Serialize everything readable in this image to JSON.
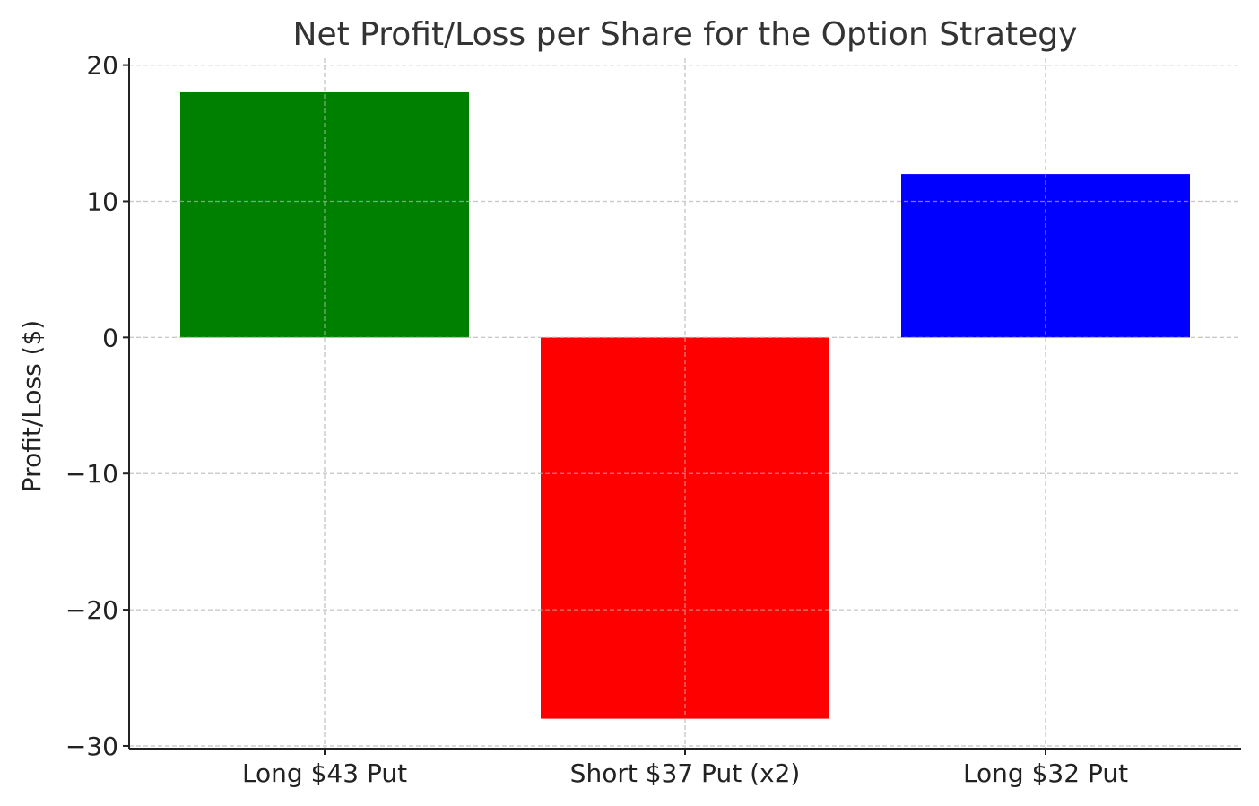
{
  "chart_data": {
    "type": "bar",
    "title": "Net Profit/Loss per Share for the Option Strategy",
    "xlabel": "",
    "ylabel": "Profit/Loss ($)",
    "categories": [
      "Long $43 Put",
      "Short $37 Put (x2)",
      "Long $32 Put"
    ],
    "values": [
      18,
      -28,
      12
    ],
    "colors": [
      "#008000",
      "#ff0000",
      "#0000ff"
    ],
    "ylim": [
      -30,
      20
    ],
    "yticks": [
      20,
      10,
      0,
      -10,
      -20,
      -30
    ],
    "ytick_labels": [
      "20",
      "10",
      "0",
      "−10",
      "−20",
      "−30"
    ],
    "grid": true,
    "legend": "none"
  }
}
